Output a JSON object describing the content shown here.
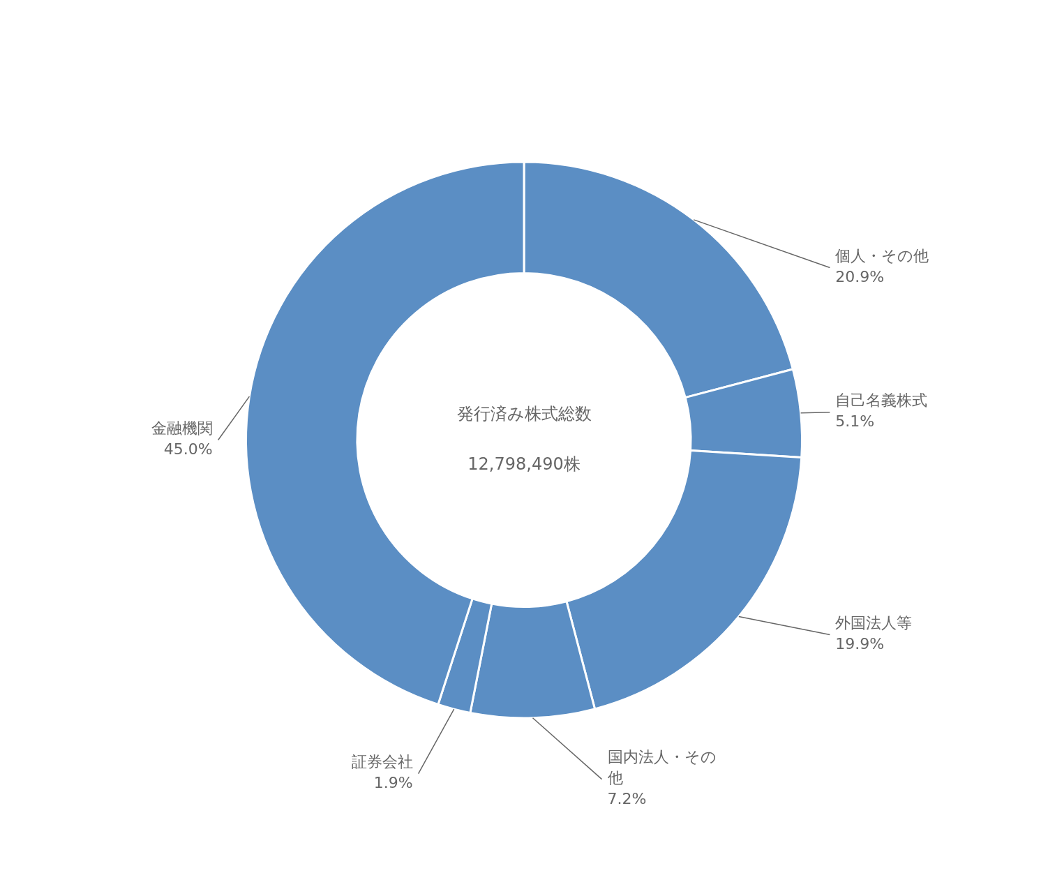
{
  "chart_data": {
    "type": "doughnut",
    "categories": [
      "個人・その他",
      "自己名義株式",
      "外国法人等",
      "国内法人・その\n他",
      "証券会社",
      "金融機関"
    ],
    "values": [
      20.9,
      5.1,
      19.9,
      7.2,
      1.9,
      45.0
    ],
    "value_labels": [
      "20.9%",
      "5.1%",
      "19.9%",
      "7.2%",
      "1.9%",
      "45.0%"
    ],
    "data_labels": true,
    "color": "#5b8ec4",
    "annotations": [
      "発行済み株式総数",
      "12,798,490株"
    ]
  }
}
